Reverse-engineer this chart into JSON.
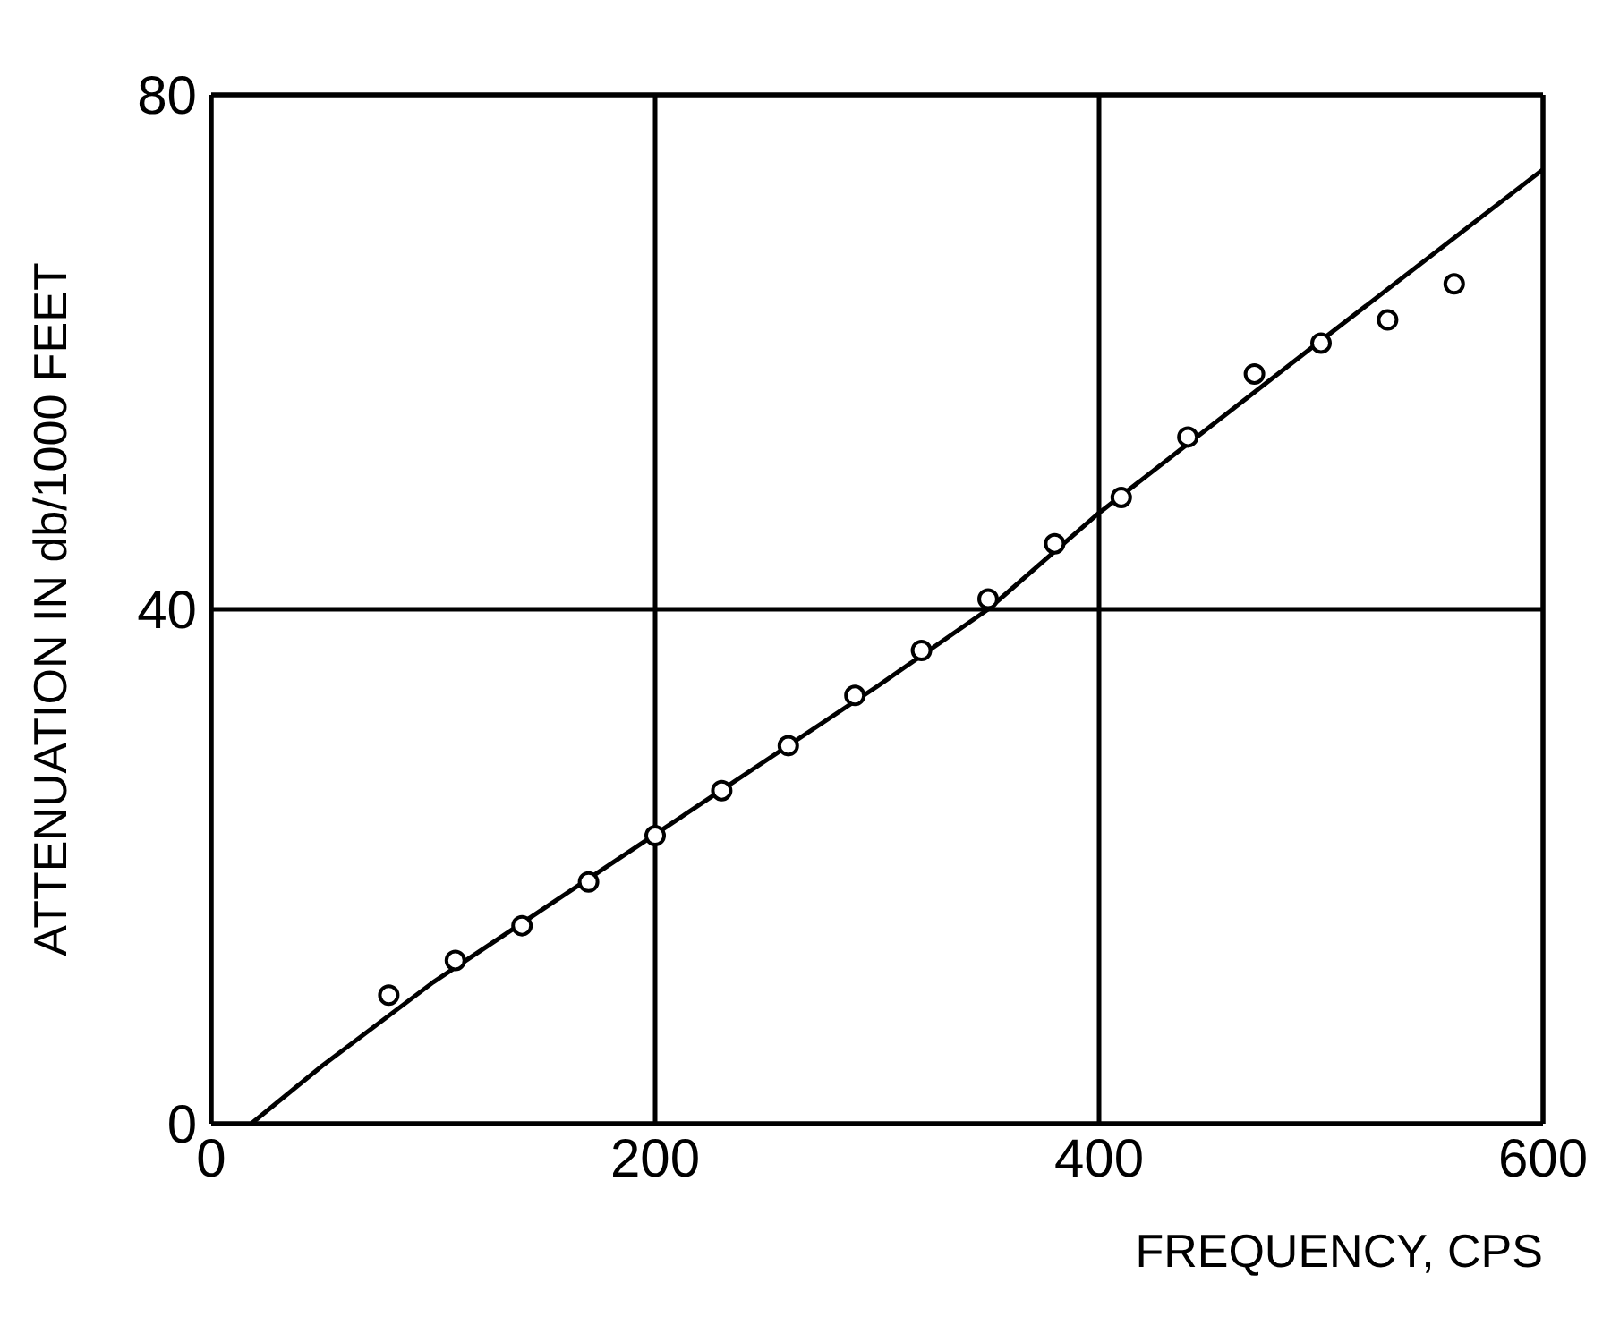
{
  "chart_data": {
    "type": "scatter",
    "xlabel": "FREQUENCY, CPS",
    "ylabel": "ATTENUATION IN db/1000 FEET",
    "xlim": [
      0,
      600
    ],
    "ylim": [
      0,
      80
    ],
    "xticks": [
      0,
      200,
      400,
      600
    ],
    "yticks": [
      0,
      40,
      80
    ],
    "grid": true,
    "marker": "circle",
    "series": [
      {
        "color": "#000000",
        "x": [
          80,
          110,
          140,
          170,
          200,
          230,
          260,
          290,
          320,
          350,
          380,
          410,
          440,
          470,
          500,
          530,
          560
        ],
        "values": [
          10.0,
          12.7,
          15.4,
          18.8,
          22.4,
          25.9,
          29.4,
          33.3,
          36.8,
          40.8,
          45.1,
          48.7,
          53.4,
          58.3,
          60.7,
          62.5,
          65.3
        ]
      },
      {
        "type": "line",
        "color": "#000000",
        "marker": "none",
        "x": [
          18,
          50,
          100,
          200,
          300,
          350,
          400,
          500,
          600
        ],
        "values": [
          0,
          4.5,
          11,
          22.5,
          34,
          40,
          47.5,
          60.9,
          74.2
        ]
      }
    ]
  }
}
